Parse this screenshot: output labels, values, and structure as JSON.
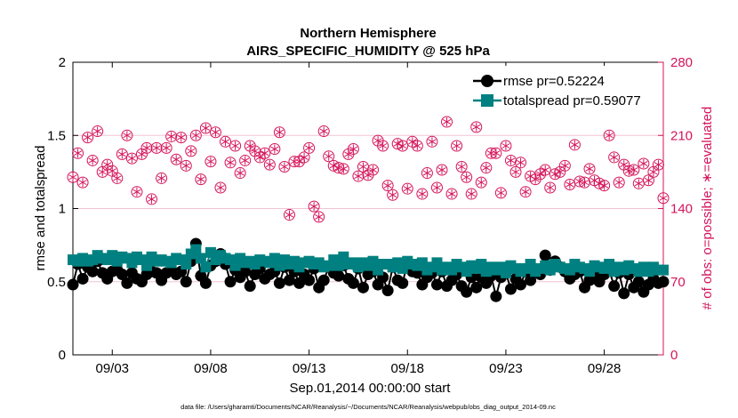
{
  "chart_data": {
    "type": "line",
    "title": "Northern Hemisphere",
    "subtitle": "AIRS_SPECIFIC_HUMIDITY @ 525 hPa",
    "xlabel": "Sep.01,2014 00:00:00 start",
    "ylabel": "rmse and totalspread",
    "y2label": "# of obs: o=possible; ∗=evaluated",
    "footnote": "data file: /Users/gharamti/Documents/NCAR/Reanalysis/~/Documents/NCAR/Reanalysis/webpub/obs_diag_output_2014-09.nc",
    "xlim": [
      1.0,
      31.0
    ],
    "ylim": [
      0,
      2
    ],
    "y2lim": [
      0,
      280
    ],
    "x_ticks": [
      3,
      8,
      13,
      18,
      23,
      28
    ],
    "x_tick_labels": [
      "09/03",
      "09/08",
      "09/13",
      "09/18",
      "09/23",
      "09/28"
    ],
    "y_ticks": [
      0,
      0.5,
      1,
      1.5,
      2
    ],
    "y_tick_labels": [
      "0",
      "0.5",
      "1",
      "1.5",
      "2"
    ],
    "y2_ticks": [
      0,
      70,
      140,
      210,
      280
    ],
    "y2_tick_labels": [
      "0",
      "70",
      "140",
      "210",
      "280"
    ],
    "grid": true,
    "legend_position": "top-right",
    "colors": {
      "rmse": "#000000",
      "totalspread": "#008080",
      "obs": "#d4145a"
    },
    "x": [
      1.0,
      1.25,
      1.5,
      1.75,
      2.0,
      2.25,
      2.5,
      2.75,
      3.0,
      3.25,
      3.5,
      3.75,
      4.0,
      4.25,
      4.5,
      4.75,
      5.0,
      5.25,
      5.5,
      5.75,
      6.0,
      6.25,
      6.5,
      6.75,
      7.0,
      7.25,
      7.5,
      7.75,
      8.0,
      8.25,
      8.5,
      8.75,
      9.0,
      9.25,
      9.5,
      9.75,
      10.0,
      10.25,
      10.5,
      10.75,
      11.0,
      11.25,
      11.5,
      11.75,
      12.0,
      12.25,
      12.5,
      12.75,
      13.0,
      13.25,
      13.5,
      13.75,
      14.0,
      14.25,
      14.5,
      14.75,
      15.0,
      15.25,
      15.5,
      15.75,
      16.0,
      16.25,
      16.5,
      16.75,
      17.0,
      17.25,
      17.5,
      17.75,
      18.0,
      18.25,
      18.5,
      18.75,
      19.0,
      19.25,
      19.5,
      19.75,
      20.0,
      20.25,
      20.5,
      20.75,
      21.0,
      21.25,
      21.5,
      21.75,
      22.0,
      22.25,
      22.5,
      22.75,
      23.0,
      23.25,
      23.5,
      23.75,
      24.0,
      24.25,
      24.5,
      24.75,
      25.0,
      25.25,
      25.5,
      25.75,
      26.0,
      26.25,
      26.5,
      26.75,
      27.0,
      27.25,
      27.5,
      27.75,
      28.0,
      28.25,
      28.5,
      28.75,
      29.0,
      29.25,
      29.5,
      29.75,
      30.0,
      30.25,
      30.5,
      30.75,
      31.0
    ],
    "series": [
      {
        "name": "rmse",
        "legend_label": "rmse pr=0.52224",
        "marker": "filled-circle",
        "axis": "left",
        "values": [
          0.48,
          0.62,
          0.52,
          0.6,
          0.57,
          0.64,
          0.56,
          0.52,
          0.57,
          0.58,
          0.55,
          0.49,
          0.56,
          0.52,
          0.5,
          0.55,
          0.57,
          0.56,
          0.51,
          0.56,
          0.58,
          0.55,
          0.57,
          0.5,
          0.64,
          0.76,
          0.54,
          0.49,
          0.61,
          0.64,
          0.69,
          0.62,
          0.5,
          0.58,
          0.53,
          0.57,
          0.47,
          0.55,
          0.59,
          0.52,
          0.55,
          0.57,
          0.49,
          0.6,
          0.51,
          0.57,
          0.49,
          0.55,
          0.51,
          0.59,
          0.46,
          0.51,
          0.6,
          0.56,
          0.54,
          0.61,
          0.52,
          0.49,
          0.59,
          0.46,
          0.55,
          0.57,
          0.48,
          0.53,
          0.44,
          0.6,
          0.51,
          0.49,
          0.63,
          0.57,
          0.56,
          0.48,
          0.53,
          0.56,
          0.48,
          0.57,
          0.47,
          0.51,
          0.55,
          0.47,
          0.43,
          0.53,
          0.46,
          0.53,
          0.49,
          0.54,
          0.4,
          0.53,
          0.56,
          0.45,
          0.52,
          0.48,
          0.57,
          0.51,
          0.58,
          0.55,
          0.68,
          0.58,
          0.64,
          0.6,
          0.57,
          0.52,
          0.55,
          0.57,
          0.46,
          0.51,
          0.56,
          0.5,
          0.55,
          0.58,
          0.47,
          0.56,
          0.42,
          0.55,
          0.46,
          0.5,
          0.43,
          0.48,
          0.52,
          0.49,
          0.5
        ]
      },
      {
        "name": "totalspread",
        "legend_label": "totalspread pr=0.59077",
        "marker": "filled-square",
        "axis": "left",
        "values": [
          0.65,
          0.64,
          0.66,
          0.64,
          0.65,
          0.68,
          0.66,
          0.65,
          0.68,
          0.64,
          0.67,
          0.66,
          0.63,
          0.67,
          0.65,
          0.61,
          0.67,
          0.64,
          0.65,
          0.64,
          0.63,
          0.66,
          0.65,
          0.62,
          0.69,
          0.72,
          0.66,
          0.6,
          0.7,
          0.65,
          0.68,
          0.66,
          0.65,
          0.61,
          0.66,
          0.63,
          0.64,
          0.62,
          0.65,
          0.64,
          0.63,
          0.66,
          0.61,
          0.65,
          0.62,
          0.64,
          0.6,
          0.63,
          0.64,
          0.62,
          0.63,
          0.6,
          0.61,
          0.65,
          0.61,
          0.67,
          0.62,
          0.63,
          0.6,
          0.63,
          0.61,
          0.64,
          0.58,
          0.62,
          0.62,
          0.6,
          0.63,
          0.59,
          0.64,
          0.62,
          0.61,
          0.63,
          0.58,
          0.6,
          0.63,
          0.58,
          0.6,
          0.58,
          0.62,
          0.6,
          0.57,
          0.61,
          0.59,
          0.62,
          0.57,
          0.6,
          0.58,
          0.6,
          0.56,
          0.61,
          0.59,
          0.57,
          0.59,
          0.62,
          0.57,
          0.59,
          0.61,
          0.58,
          0.62,
          0.6,
          0.59,
          0.58,
          0.62,
          0.6,
          0.59,
          0.57,
          0.61,
          0.6,
          0.59,
          0.62,
          0.57,
          0.6,
          0.58,
          0.61,
          0.59,
          0.57,
          0.6,
          0.57,
          0.6,
          0.58,
          0.58
        ]
      },
      {
        "name": "possible",
        "marker": "open-circle",
        "axis": "right",
        "values": [
          170,
          193,
          165,
          208,
          186,
          214,
          175,
          182,
          176,
          169,
          192,
          210,
          188,
          156,
          192,
          198,
          149,
          198,
          169,
          198,
          209,
          187,
          208,
          181,
          195,
          210,
          168,
          217,
          185,
          213,
          160,
          204,
          184,
          200,
          174,
          186,
          200,
          195,
          189,
          193,
          182,
          197,
          213,
          180,
          134,
          185,
          185,
          189,
          198,
          142,
          132,
          214,
          190,
          181,
          179,
          178,
          192,
          197,
          171,
          180,
          172,
          177,
          205,
          200,
          162,
          153,
          202,
          200,
          159,
          204,
          200,
          154,
          174,
          204,
          160,
          177,
          223,
          154,
          200,
          180,
          170,
          154,
          218,
          165,
          179,
          193,
          193,
          155,
          200,
          186,
          175,
          184,
          156,
          171,
          168,
          173,
          177,
          160,
          173,
          175,
          181,
          163,
          201,
          166,
          165,
          178,
          167,
          164,
          162,
          210,
          189,
          165,
          182,
          176,
          177,
          164,
          183,
          167,
          175,
          182,
          150
        ]
      },
      {
        "name": "evaluated",
        "marker": "asterisk",
        "axis": "right",
        "values": [
          170,
          193,
          165,
          208,
          186,
          214,
          175,
          182,
          176,
          169,
          192,
          210,
          188,
          156,
          192,
          198,
          149,
          198,
          169,
          198,
          209,
          187,
          208,
          181,
          195,
          210,
          168,
          217,
          185,
          213,
          160,
          204,
          184,
          200,
          174,
          186,
          200,
          195,
          189,
          193,
          182,
          197,
          213,
          180,
          134,
          185,
          185,
          189,
          198,
          142,
          132,
          214,
          190,
          181,
          179,
          178,
          192,
          197,
          171,
          180,
          172,
          177,
          205,
          200,
          162,
          153,
          202,
          200,
          159,
          204,
          200,
          154,
          174,
          204,
          160,
          177,
          223,
          154,
          200,
          180,
          170,
          154,
          218,
          165,
          179,
          193,
          193,
          155,
          200,
          186,
          175,
          184,
          156,
          171,
          168,
          173,
          177,
          160,
          173,
          175,
          181,
          163,
          201,
          166,
          165,
          178,
          167,
          164,
          162,
          210,
          189,
          165,
          182,
          176,
          177,
          164,
          183,
          167,
          175,
          182,
          150
        ]
      }
    ]
  }
}
